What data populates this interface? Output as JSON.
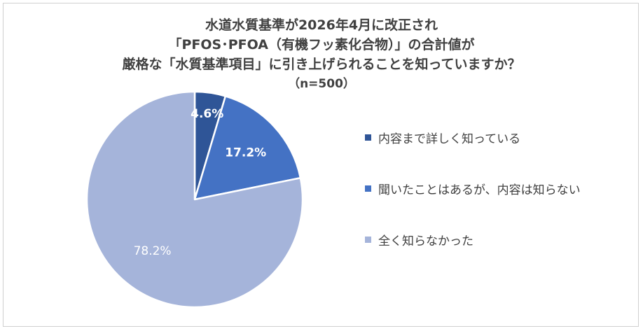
{
  "chart_data": {
    "type": "pie",
    "title_lines": [
      "水道水質基準が2026年4月に改正され",
      "「PFOS･PFOA（有機フッ素化合物）」の合計値が",
      "厳格な「水質基準項目」に引き上げられることを知っていますか？"
    ],
    "subtitle": "（n=500）",
    "slices": [
      {
        "label": "内容まで詳しく知っている",
        "value": 4.6,
        "display": "4.6%",
        "color": "#2f5597"
      },
      {
        "label": "聞いたことはあるが、内容は知らない",
        "value": 17.2,
        "display": "17.2%",
        "color": "#4472c4"
      },
      {
        "label": "全く知らなかった",
        "value": 78.2,
        "display": "78.2%",
        "color": "#a5b4da"
      }
    ],
    "legend_position": "right",
    "start": "12 o'clock",
    "direction": "clockwise"
  }
}
